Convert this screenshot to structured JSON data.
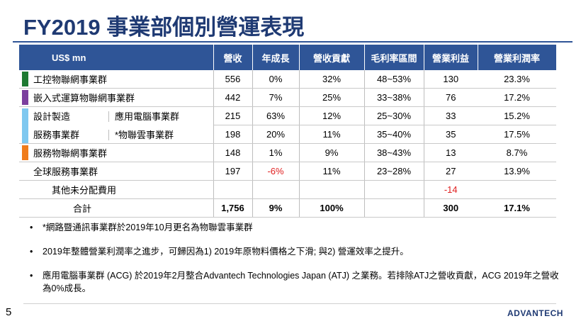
{
  "title": "FY2019 事業部個別營運表現",
  "table": {
    "headers": [
      "US$ mn",
      "營收",
      "年成長",
      "營收貢獻",
      "毛利率區間",
      "營業利益",
      "營業利潤率"
    ],
    "rows": [
      {
        "name": "工控物聯網事業群",
        "bar_color": "#1e7a32",
        "revenue": "556",
        "growth": "0%",
        "contribution": "32%",
        "gross_margin": "48~53%",
        "op_profit": "130",
        "op_margin": "23.3%"
      },
      {
        "name": "嵌入式運算物聯網事業群",
        "bar_color": "#7b3f9e",
        "revenue": "442",
        "growth": "7%",
        "contribution": "25%",
        "gross_margin": "33~38%",
        "op_profit": "76",
        "op_margin": "17.2%"
      },
      {
        "group": "設計製造",
        "sub": "應用電腦事業群",
        "bar_color": "#7ec8f0",
        "revenue": "215",
        "growth": "63%",
        "contribution": "12%",
        "gross_margin": "25~30%",
        "op_profit": "33",
        "op_margin": "15.2%"
      },
      {
        "group": "服務事業群",
        "sub": "*物聯雲事業群",
        "revenue": "198",
        "growth": "20%",
        "contribution": "11%",
        "gross_margin": "35~40%",
        "op_profit": "35",
        "op_margin": "17.5%"
      },
      {
        "name": "服務物聯網事業群",
        "bar_color": "#f07c1c",
        "revenue": "148",
        "growth": "1%",
        "contribution": "9%",
        "gross_margin": "38~43%",
        "op_profit": "13",
        "op_margin": "8.7%"
      },
      {
        "name": "全球服務事業群",
        "revenue": "197",
        "growth": "-6%",
        "contribution": "11%",
        "gross_margin": "23~28%",
        "op_profit": "27",
        "op_margin": "13.9%"
      },
      {
        "name": "其他未分配費用",
        "op_profit": "-14"
      },
      {
        "name": "合計",
        "revenue": "1,756",
        "growth": "9%",
        "contribution": "100%",
        "op_profit": "300",
        "op_margin": "17.1%"
      }
    ]
  },
  "notes": [
    "*網路暨通訊事業群於2019年10月更名為物聯雲事業群",
    "2019年整體營業利潤率之進步，可歸因為1) 2019年原物料價格之下滑; 與2) 營運效率之提升。",
    "應用電腦事業群 (ACG) 於2019年2月整合Advantech Technologies Japan (ATJ) 之業務。若排除ATJ之營收貢獻，ACG 2019年之營收為0%成長。"
  ],
  "bullet_symbol": "•",
  "page_number": "5",
  "logo": "ADVANTECH"
}
